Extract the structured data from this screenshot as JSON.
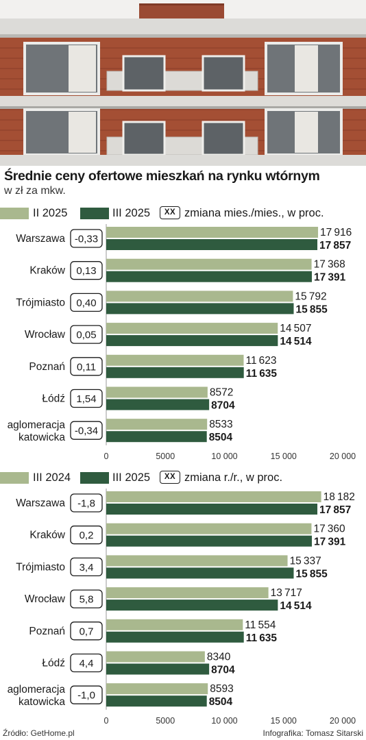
{
  "header": {
    "title": "Średnie ceny ofertowe mieszkań na rynku wtórnym",
    "subtitle": "w zł za mkw."
  },
  "colors": {
    "light_bar": "#a9b88e",
    "dark_bar": "#2f5b3f",
    "axis": "#9a9a9a"
  },
  "chart_data": [
    {
      "type": "bar",
      "orientation": "horizontal",
      "legend": {
        "series_a": "II 2025",
        "series_b": "III 2025",
        "change_box": "XX",
        "change_label": "zmiana mies./mies., w proc."
      },
      "categories": [
        "Warszawa",
        "Kraków",
        "Trójmiasto",
        "Wrocław",
        "Poznań",
        "Łódź",
        "aglomeracja katowicka"
      ],
      "changes": [
        "-0,33",
        "0,13",
        "0,40",
        "0,05",
        "0,11",
        "1,54",
        "-0,34"
      ],
      "series": [
        {
          "name": "II 2025",
          "values": [
            17916,
            17368,
            15792,
            14507,
            11623,
            8572,
            8533
          ]
        },
        {
          "name": "III 2025",
          "values": [
            17857,
            17391,
            15855,
            14514,
            11635,
            8704,
            8504
          ]
        }
      ],
      "xlim": [
        0,
        20000
      ],
      "ticks": [
        "0",
        "5000",
        "10 000",
        "15 000",
        "20 000"
      ]
    },
    {
      "type": "bar",
      "orientation": "horizontal",
      "legend": {
        "series_a": "III 2024",
        "series_b": "III 2025",
        "change_box": "XX",
        "change_label": "zmiana r./r., w proc."
      },
      "categories": [
        "Warszawa",
        "Kraków",
        "Trójmiasto",
        "Wrocław",
        "Poznań",
        "Łódź",
        "aglomeracja katowicka"
      ],
      "changes": [
        "-1,8",
        "0,2",
        "3,4",
        "5,8",
        "0,7",
        "4,4",
        "-1,0"
      ],
      "series": [
        {
          "name": "III 2024",
          "values": [
            18182,
            17360,
            15337,
            13717,
            11554,
            8340,
            8593
          ]
        },
        {
          "name": "III 2025",
          "values": [
            17857,
            17391,
            15855,
            14514,
            11635,
            8704,
            8504
          ]
        }
      ],
      "xlim": [
        0,
        20000
      ],
      "ticks": [
        "0",
        "5000",
        "10 000",
        "15 000",
        "20 000"
      ]
    }
  ],
  "footer": {
    "source": "Źródło: GetHome.pl",
    "credit": "Infografika: Tomasz Sitarski"
  }
}
